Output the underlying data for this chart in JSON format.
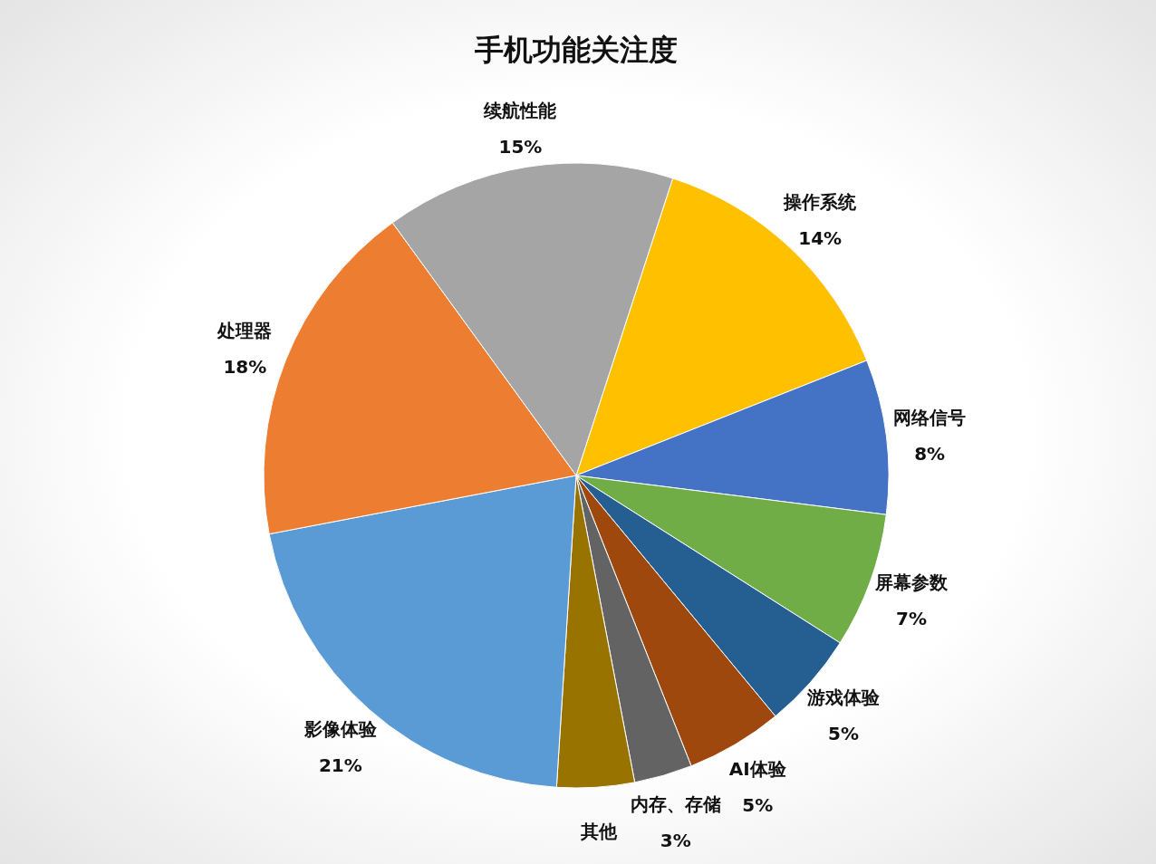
{
  "chart_data": {
    "type": "pie",
    "title": "手机功能关注度",
    "categories": [
      "操作系统",
      "网络信号",
      "屏幕参数",
      "游戏体验",
      "AI体验",
      "内存、存储",
      "其他",
      "影像体验",
      "处理器",
      "续航性能"
    ],
    "values": [
      14,
      8,
      7,
      5,
      5,
      3,
      4,
      21,
      18,
      15
    ],
    "value_labels": [
      "14%",
      "8%",
      "7%",
      "5%",
      "5%",
      "3%",
      null,
      "21%",
      "18%",
      "15%"
    ],
    "colors": [
      "#ffc000",
      "#4472c4",
      "#70ad47",
      "#255e91",
      "#9e480e",
      "#636363",
      "#997300",
      "#5b9bd5",
      "#ed7d31",
      "#a5a5a5"
    ]
  }
}
